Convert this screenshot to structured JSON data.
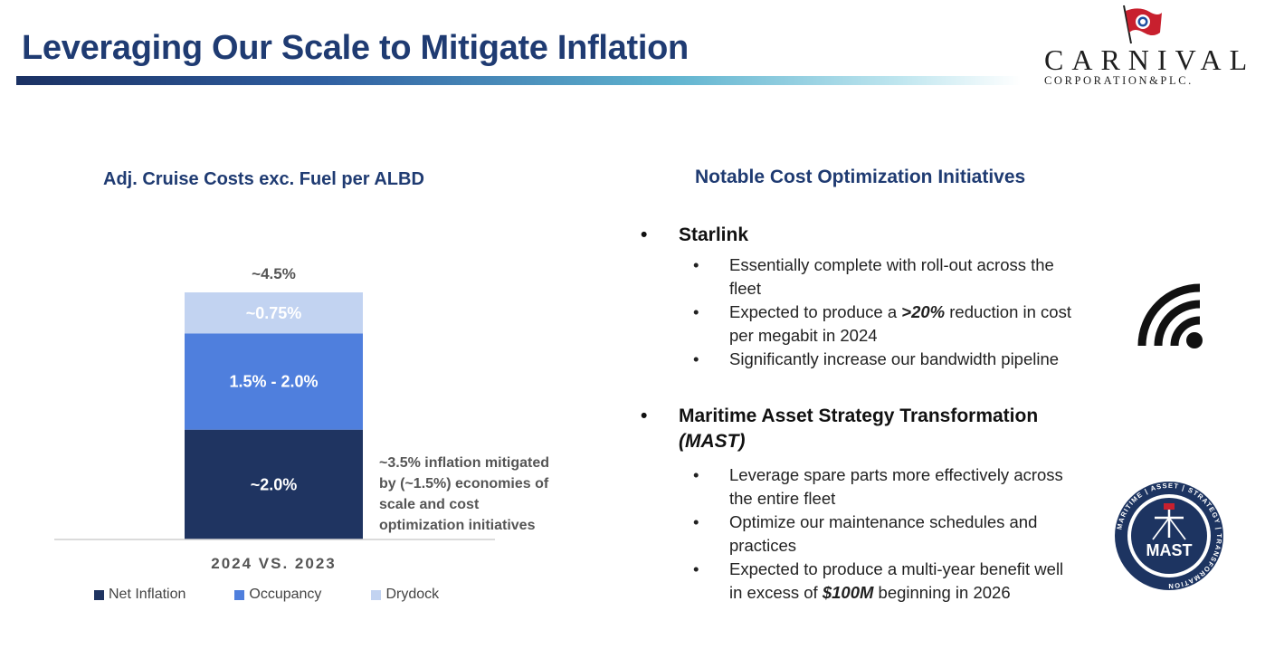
{
  "header": {
    "title": "Leveraging Our Scale to Mitigate Inflation",
    "logo_word": "CARNIVAL",
    "logo_sub": "CORPORATION&PLC."
  },
  "chart_data": {
    "type": "bar",
    "stacked": true,
    "title": "Adj. Cruise Costs exc. Fuel per ALBD",
    "categories": [
      "2024 VS. 2023"
    ],
    "total_label": "~4.5%",
    "series": [
      {
        "name": "Net Inflation",
        "value": 2.0,
        "label": "~2.0%",
        "color": "#1f3461",
        "label_color": "#ffffff"
      },
      {
        "name": "Occupancy",
        "value": 1.75,
        "label": "1.5% - 2.0%",
        "color": "#4f7fdd",
        "label_color": "#ffffff"
      },
      {
        "name": "Drydock",
        "value": 0.75,
        "label": "~0.75%",
        "color": "#c2d3f1",
        "label_color": "#ffffff"
      }
    ],
    "annotation": [
      "~3.5% inflation mitigated",
      "by (~1.5%) economies of",
      "scale and cost",
      "optimization initiatives"
    ],
    "ylim": [
      0,
      4.5
    ],
    "grid": false,
    "legend_position": "bottom"
  },
  "initiatives": {
    "title": "Notable Cost Optimization Initiatives",
    "bullet": "•",
    "starlink": {
      "heading": "Starlink",
      "items": [
        {
          "line1": "Essentially complete with roll-out across the",
          "line2": "fleet"
        },
        {
          "pre": "Expected to produce a ",
          "emph": ">20%",
          "post": " reduction in cost",
          "line2": "per megabit in 2024"
        },
        {
          "line1": "Significantly increase our bandwidth pipeline",
          "line2": ""
        }
      ]
    },
    "mast": {
      "heading": "Maritime Asset Strategy Transformation",
      "heading2": "(MAST)",
      "items": [
        {
          "line1": "Leverage spare parts more effectively across",
          "line2": "the entire fleet"
        },
        {
          "line1": "Optimize our maintenance schedules and",
          "line2": "practices"
        },
        {
          "line1": "Expected to produce a multi-year benefit well",
          "pre": "in excess of ",
          "emph": "$100M",
          "post": " beginning in 2026"
        }
      ],
      "badge_text": "MAST",
      "badge_ring_text": "MARITIME | ASSET | STRATEGY | TRANSFORMATION"
    }
  },
  "colors": {
    "brand_navy": "#1f3b72",
    "net_inflation": "#1f3461",
    "occupancy": "#4f7fdd",
    "drydock": "#c2d3f1",
    "mast_badge": "#1d3461"
  }
}
